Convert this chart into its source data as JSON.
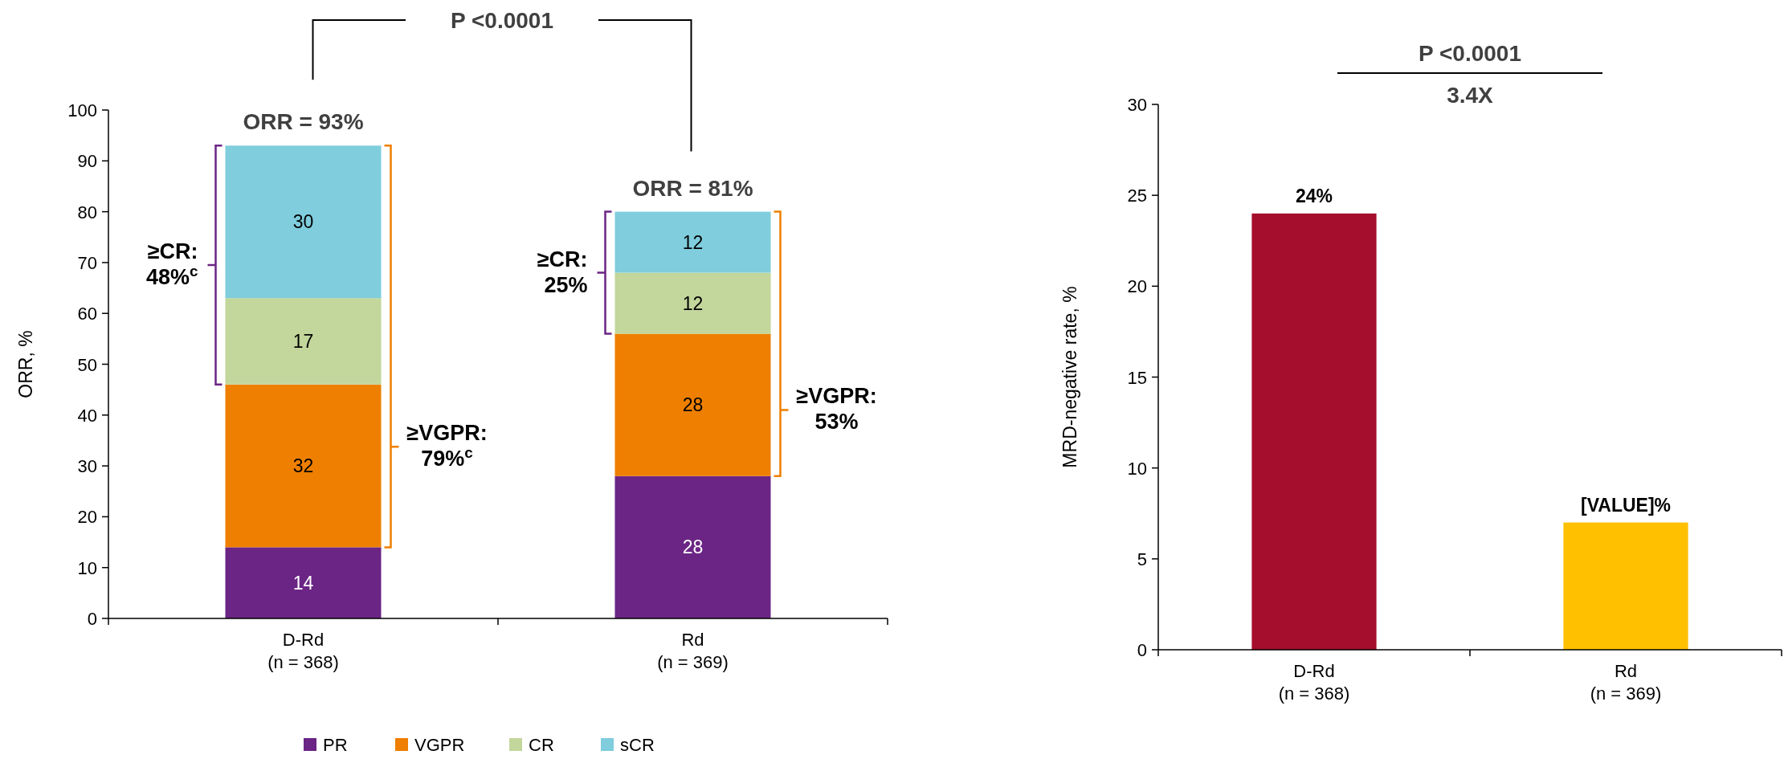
{
  "chart_data": [
    {
      "type": "bar",
      "stacked": true,
      "categories": [
        "D-Rd\n(n = 368)",
        "Rd\n(n = 369)"
      ],
      "series": [
        {
          "name": "PR",
          "color": "#6b2585",
          "values": [
            14,
            28
          ]
        },
        {
          "name": "VGPR",
          "color": "#ee7f00",
          "values": [
            32,
            28
          ]
        },
        {
          "name": "CR",
          "color": "#c3d69b",
          "values": [
            17,
            12
          ]
        },
        {
          "name": "sCR",
          "color": "#7fcddd",
          "values": [
            30,
            12
          ]
        }
      ],
      "data_labels": true,
      "totals": [
        "ORR = 93%",
        "ORR = 81%"
      ],
      "ylim": [
        0,
        100
      ],
      "yticks": [
        0,
        10,
        20,
        30,
        40,
        50,
        60,
        70,
        80,
        90,
        100
      ],
      "ylabel": "ORR, %",
      "legend": "bottom",
      "annotations": [
        "P <0.0001",
        "≥CR:\n48%$^{c}$",
        "≥VGPR:\n79%$^{c}$",
        "≥CR:\n25%",
        "≥VGPR:\n53%"
      ]
    },
    {
      "type": "bar",
      "categories": [
        "D-Rd\n(n = 368)",
        "Rd\n(n = 369)"
      ],
      "values": [
        24,
        7
      ],
      "colors": [
        "#a50e2d",
        "#ffc000"
      ],
      "value_labels": [
        "24%",
        "[VALUE]%"
      ],
      "ylim": [
        0,
        30
      ],
      "yticks": [
        0,
        5,
        10,
        15,
        20,
        25,
        30
      ],
      "ylabel": "MRD-negative  rate, %",
      "annotations": [
        "P <0.0001",
        "3.4X"
      ]
    }
  ]
}
